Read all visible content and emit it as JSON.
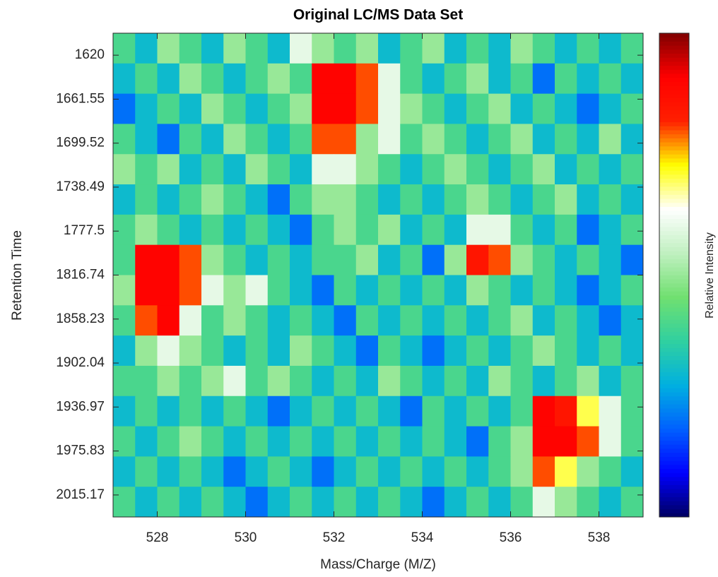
{
  "chart_data": {
    "type": "heatmap",
    "title": "Original LC/MS Data Set",
    "x_label": "Mass/Charge (M/Z)",
    "y_label": "Retention Time",
    "colorbar_label": "Relative Intensity",
    "xlim": [
      527,
      539
    ],
    "xticks": [
      528,
      530,
      532,
      534,
      536,
      538
    ],
    "ylim": [
      0.5,
      11.5
    ],
    "yticks": [
      {
        "value": 1,
        "label": "1620"
      },
      {
        "value": 2,
        "label": "1661.55"
      },
      {
        "value": 3,
        "label": "1699.52"
      },
      {
        "value": 4,
        "label": "1738.49"
      },
      {
        "value": 5,
        "label": "1777.5"
      },
      {
        "value": 6,
        "label": "1816.74"
      },
      {
        "value": 7,
        "label": "1858.23"
      },
      {
        "value": 8,
        "label": "1902.04"
      },
      {
        "value": 9,
        "label": "1936.97"
      },
      {
        "value": 10,
        "label": "1975.83"
      },
      {
        "value": 11,
        "label": "2015.17"
      }
    ],
    "clim": [
      0,
      1
    ],
    "colormap": [
      "#000060",
      "#0000ff",
      "#0060ff",
      "#00b0e0",
      "#30d0a0",
      "#70e070",
      "#c0f0c0",
      "#ffffff",
      "#ffff00",
      "#ff2000",
      "#ff0000",
      "#800000"
    ],
    "x": [
      527.25,
      527.75,
      528.25,
      528.75,
      529.25,
      529.75,
      530.25,
      530.75,
      531.25,
      531.75,
      532.25,
      532.75,
      533.25,
      533.75,
      534.25,
      534.75,
      535.25,
      535.75,
      536.25,
      536.75,
      537.25,
      537.75,
      538.25,
      538.75
    ],
    "values": [
      [
        0.4,
        0.3,
        0.5,
        0.4,
        0.3,
        0.5,
        0.4,
        0.3,
        0.6,
        0.5,
        0.4,
        0.5,
        0.3,
        0.4,
        0.5,
        0.3,
        0.4,
        0.3,
        0.5,
        0.4,
        0.3,
        0.4,
        0.3,
        0.4
      ],
      [
        0.3,
        0.4,
        0.3,
        0.5,
        0.4,
        0.3,
        0.4,
        0.5,
        0.4,
        0.9,
        0.9,
        0.8,
        0.6,
        0.4,
        0.3,
        0.4,
        0.5,
        0.3,
        0.4,
        0.2,
        0.4,
        0.3,
        0.4,
        0.3
      ],
      [
        0.2,
        0.3,
        0.4,
        0.3,
        0.5,
        0.4,
        0.3,
        0.4,
        0.5,
        0.9,
        0.9,
        0.8,
        0.6,
        0.5,
        0.4,
        0.3,
        0.4,
        0.5,
        0.3,
        0.4,
        0.3,
        0.2,
        0.3,
        0.4
      ],
      [
        0.4,
        0.3,
        0.2,
        0.4,
        0.3,
        0.5,
        0.4,
        0.3,
        0.4,
        0.8,
        0.8,
        0.5,
        0.6,
        0.4,
        0.5,
        0.4,
        0.3,
        0.4,
        0.5,
        0.3,
        0.4,
        0.3,
        0.5,
        0.3
      ],
      [
        0.5,
        0.4,
        0.5,
        0.3,
        0.4,
        0.3,
        0.5,
        0.4,
        0.3,
        0.6,
        0.6,
        0.5,
        0.4,
        0.3,
        0.4,
        0.5,
        0.4,
        0.3,
        0.4,
        0.5,
        0.3,
        0.4,
        0.3,
        0.4
      ],
      [
        0.3,
        0.4,
        0.3,
        0.4,
        0.5,
        0.4,
        0.3,
        0.2,
        0.4,
        0.5,
        0.5,
        0.4,
        0.3,
        0.4,
        0.3,
        0.4,
        0.5,
        0.4,
        0.3,
        0.4,
        0.5,
        0.3,
        0.4,
        0.3
      ],
      [
        0.4,
        0.5,
        0.4,
        0.3,
        0.4,
        0.3,
        0.4,
        0.3,
        0.2,
        0.4,
        0.5,
        0.4,
        0.5,
        0.3,
        0.4,
        0.3,
        0.6,
        0.6,
        0.4,
        0.3,
        0.4,
        0.2,
        0.3,
        0.4
      ],
      [
        0.4,
        0.9,
        0.9,
        0.8,
        0.5,
        0.4,
        0.3,
        0.4,
        0.3,
        0.4,
        0.4,
        0.5,
        0.3,
        0.4,
        0.2,
        0.5,
        0.85,
        0.8,
        0.5,
        0.4,
        0.3,
        0.4,
        0.3,
        0.2
      ],
      [
        0.5,
        0.9,
        0.9,
        0.8,
        0.6,
        0.5,
        0.6,
        0.4,
        0.3,
        0.2,
        0.4,
        0.3,
        0.4,
        0.3,
        0.4,
        0.3,
        0.5,
        0.4,
        0.3,
        0.4,
        0.3,
        0.2,
        0.3,
        0.4
      ],
      [
        0.4,
        0.8,
        0.9,
        0.6,
        0.4,
        0.5,
        0.4,
        0.3,
        0.4,
        0.3,
        0.2,
        0.4,
        0.3,
        0.4,
        0.3,
        0.4,
        0.3,
        0.4,
        0.5,
        0.3,
        0.4,
        0.3,
        0.2,
        0.3
      ],
      [
        0.3,
        0.5,
        0.6,
        0.5,
        0.4,
        0.3,
        0.4,
        0.3,
        0.5,
        0.4,
        0.3,
        0.2,
        0.4,
        0.3,
        0.2,
        0.3,
        0.4,
        0.3,
        0.4,
        0.5,
        0.4,
        0.3,
        0.4,
        0.3
      ],
      [
        0.4,
        0.4,
        0.5,
        0.4,
        0.5,
        0.6,
        0.4,
        0.5,
        0.4,
        0.3,
        0.4,
        0.3,
        0.5,
        0.4,
        0.3,
        0.4,
        0.3,
        0.5,
        0.4,
        0.3,
        0.4,
        0.5,
        0.3,
        0.4
      ],
      [
        0.3,
        0.4,
        0.3,
        0.4,
        0.3,
        0.4,
        0.3,
        0.2,
        0.3,
        0.4,
        0.3,
        0.4,
        0.3,
        0.2,
        0.4,
        0.3,
        0.4,
        0.3,
        0.4,
        0.9,
        0.85,
        0.7,
        0.6,
        0.4
      ],
      [
        0.4,
        0.3,
        0.4,
        0.5,
        0.4,
        0.3,
        0.4,
        0.3,
        0.4,
        0.3,
        0.4,
        0.3,
        0.4,
        0.3,
        0.4,
        0.3,
        0.2,
        0.4,
        0.5,
        0.9,
        0.9,
        0.8,
        0.6,
        0.4
      ],
      [
        0.3,
        0.4,
        0.3,
        0.4,
        0.3,
        0.2,
        0.3,
        0.4,
        0.3,
        0.2,
        0.3,
        0.4,
        0.3,
        0.4,
        0.3,
        0.4,
        0.3,
        0.4,
        0.5,
        0.8,
        0.7,
        0.5,
        0.4,
        0.3
      ],
      [
        0.4,
        0.3,
        0.4,
        0.3,
        0.4,
        0.3,
        0.2,
        0.3,
        0.4,
        0.3,
        0.4,
        0.3,
        0.4,
        0.3,
        0.2,
        0.3,
        0.4,
        0.3,
        0.4,
        0.6,
        0.5,
        0.4,
        0.3,
        0.4
      ]
    ]
  }
}
